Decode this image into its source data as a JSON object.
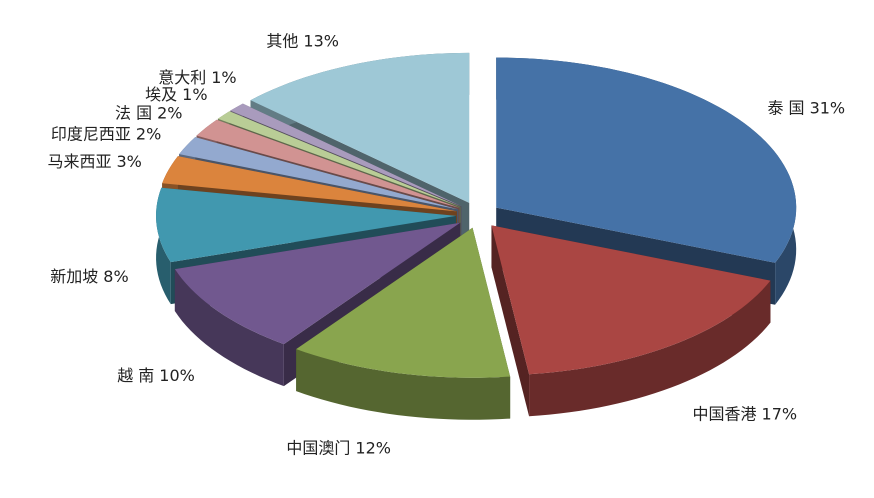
{
  "chart_data": {
    "type": "pie3d",
    "categories": [
      "泰 国",
      "中国香港",
      "中国澳门",
      "越 南",
      "新加坡",
      "马来西亚",
      "印度尼西亚",
      "法 国",
      "埃及",
      "意大利",
      "其他"
    ],
    "values": [
      31,
      17,
      12,
      10,
      8,
      3,
      2,
      2,
      1,
      1,
      13
    ],
    "value_labels": [
      "31%",
      "17%",
      "12%",
      "10%",
      "8%",
      "3%",
      "2%",
      "2%",
      "1%",
      "1%",
      "13%"
    ],
    "colors": [
      "#4572a7",
      "#aa4643",
      "#89a54e",
      "#71588f",
      "#4198af",
      "#db843d",
      "#93a9cf",
      "#d19392",
      "#b9cd96",
      "#a99bbd",
      "#9ec8d6"
    ]
  }
}
